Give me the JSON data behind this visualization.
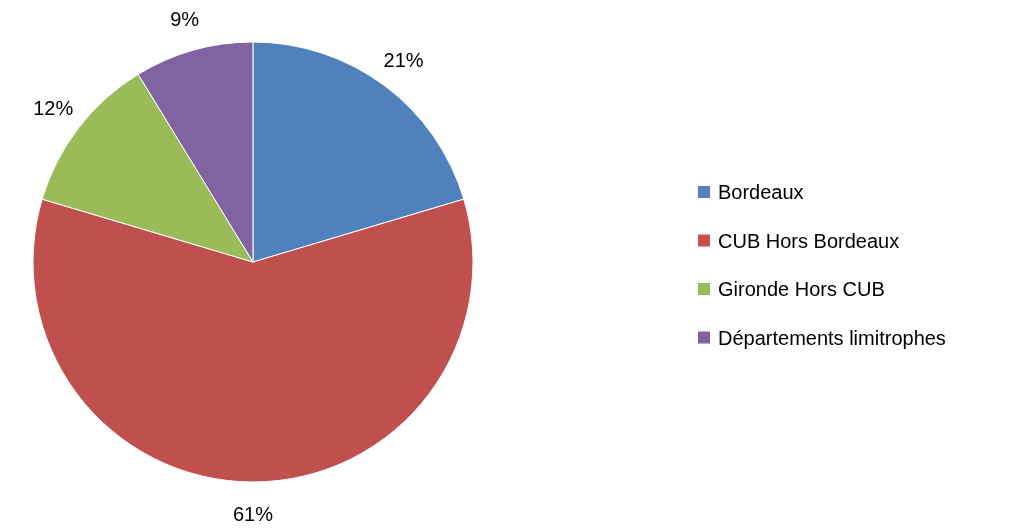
{
  "chart_data": {
    "type": "pie",
    "categories": [
      "Bordeaux",
      "CUB Hors Bordeaux",
      "Gironde Hors CUB",
      "Départements limitrophes"
    ],
    "values": [
      21,
      61,
      12,
      9
    ],
    "colors": [
      "#4f81bd",
      "#c0504d",
      "#9bbb59",
      "#8064a2"
    ],
    "value_labels": [
      "21%",
      "61%",
      "12%",
      "9%"
    ],
    "legend": "right"
  }
}
